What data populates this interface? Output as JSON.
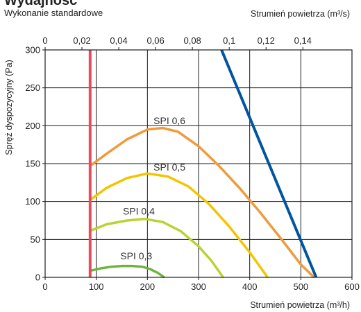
{
  "chart_data": {
    "type": "line",
    "title": "Wydajność",
    "subtitle": "Wykonanie standardowe",
    "xlabel": "Strumień powietrza (m³/h)",
    "x2label": "Strumień powietrza (m³/s)",
    "ylabel": "Spręż dyspozycyjny (Pa)",
    "xlim": [
      0,
      600
    ],
    "ylim": [
      0,
      300
    ],
    "x2lim": [
      0,
      0.16667
    ],
    "x_ticks": [
      0,
      100,
      200,
      300,
      400,
      500,
      600
    ],
    "x_tick_labels": [
      "0",
      "100",
      "200",
      "300",
      "400",
      "500",
      "600"
    ],
    "x2_ticks": [
      0,
      0.02,
      0.04,
      0.06,
      0.08,
      0.1,
      0.12,
      0.14
    ],
    "x2_tick_labels": [
      "0",
      "0,02",
      "0,04",
      "0,06",
      "0,08",
      "0,1",
      "0,12",
      "0,14"
    ],
    "y_ticks": [
      0,
      50,
      100,
      150,
      200,
      250,
      300
    ],
    "y_tick_labels": [
      "0",
      "50",
      "100",
      "150",
      "200",
      "250",
      "300"
    ],
    "grid": true,
    "series": [
      {
        "name": "SPI 0,3",
        "color": "#6fb43f",
        "x": [
          90,
          110,
          130,
          150,
          170,
          190,
          205,
          220,
          233
        ],
        "y": [
          9,
          12,
          14,
          15,
          15,
          14,
          11,
          6,
          0
        ],
        "label": "SPI 0,3",
        "label_at": [
          147,
          24
        ]
      },
      {
        "name": "SPI 0,4",
        "color": "#b8d432",
        "x": [
          90,
          120,
          160,
          195,
          230,
          265,
          300,
          325,
          348
        ],
        "y": [
          62,
          70,
          75,
          77,
          73,
          61,
          41,
          22,
          0
        ],
        "label": "SPI 0,4",
        "label_at": [
          152,
          83
        ]
      },
      {
        "name": "SPI 0,5",
        "color": "#f5c400",
        "x": [
          90,
          120,
          160,
          200,
          240,
          280,
          320,
          360,
          400,
          435
        ],
        "y": [
          103,
          118,
          131,
          137,
          133,
          120,
          97,
          67,
          33,
          0
        ],
        "label": "SPI 0,5",
        "label_at": [
          212,
          141
        ]
      },
      {
        "name": "SPI 0,6",
        "color": "#f09a3a",
        "x": [
          90,
          120,
          160,
          200,
          230,
          260,
          300,
          340,
          380,
          420,
          460,
          500,
          526
        ],
        "y": [
          148,
          163,
          182,
          195,
          197,
          192,
          173,
          147,
          118,
          86,
          52,
          17,
          0
        ],
        "label": "SPI 0,6",
        "label_at": [
          212,
          202
        ]
      },
      {
        "name": "",
        "color": "#0055a0",
        "x": [
          345,
          530
        ],
        "y": [
          300,
          0
        ]
      },
      {
        "name": "",
        "color": "#e84a60",
        "x": [
          88,
          88
        ],
        "y": [
          0,
          300
        ]
      }
    ]
  }
}
